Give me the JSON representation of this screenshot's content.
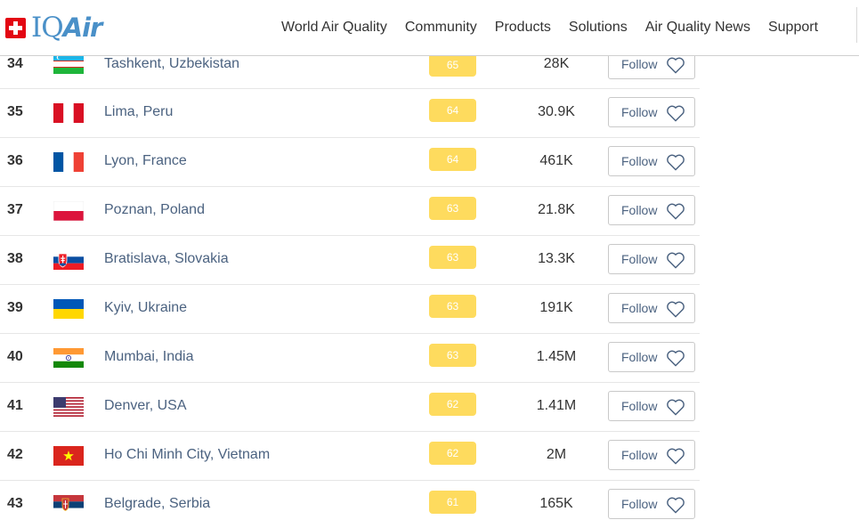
{
  "header": {
    "brand": {
      "prefix": "IQ",
      "suffix": "Air"
    },
    "nav": [
      "World Air Quality",
      "Community",
      "Products",
      "Solutions",
      "Air Quality News",
      "Support"
    ]
  },
  "colors": {
    "aqi_moderate": "#fedb5e",
    "brand_blue": "#4a90c8",
    "swiss_red": "#e30613"
  },
  "follow_label": "Follow",
  "rows": [
    {
      "rank": "34",
      "city": "Tashkent, Uzbekistan",
      "aqi": "65",
      "population": "28K",
      "flag": "uzbekistan-flag"
    },
    {
      "rank": "35",
      "city": "Lima, Peru",
      "aqi": "64",
      "population": "30.9K",
      "flag": "peru-flag"
    },
    {
      "rank": "36",
      "city": "Lyon, France",
      "aqi": "64",
      "population": "461K",
      "flag": "france-flag"
    },
    {
      "rank": "37",
      "city": "Poznan, Poland",
      "aqi": "63",
      "population": "21.8K",
      "flag": "poland-flag"
    },
    {
      "rank": "38",
      "city": "Bratislava, Slovakia",
      "aqi": "63",
      "population": "13.3K",
      "flag": "slovakia-flag"
    },
    {
      "rank": "39",
      "city": "Kyiv, Ukraine",
      "aqi": "63",
      "population": "191K",
      "flag": "ukraine-flag"
    },
    {
      "rank": "40",
      "city": "Mumbai, India",
      "aqi": "63",
      "population": "1.45M",
      "flag": "india-flag"
    },
    {
      "rank": "41",
      "city": "Denver, USA",
      "aqi": "62",
      "population": "1.41M",
      "flag": "usa-flag"
    },
    {
      "rank": "42",
      "city": "Ho Chi Minh City, Vietnam",
      "aqi": "62",
      "population": "2M",
      "flag": "vietnam-flag"
    },
    {
      "rank": "43",
      "city": "Belgrade, Serbia",
      "aqi": "61",
      "population": "165K",
      "flag": "serbia-flag"
    }
  ]
}
